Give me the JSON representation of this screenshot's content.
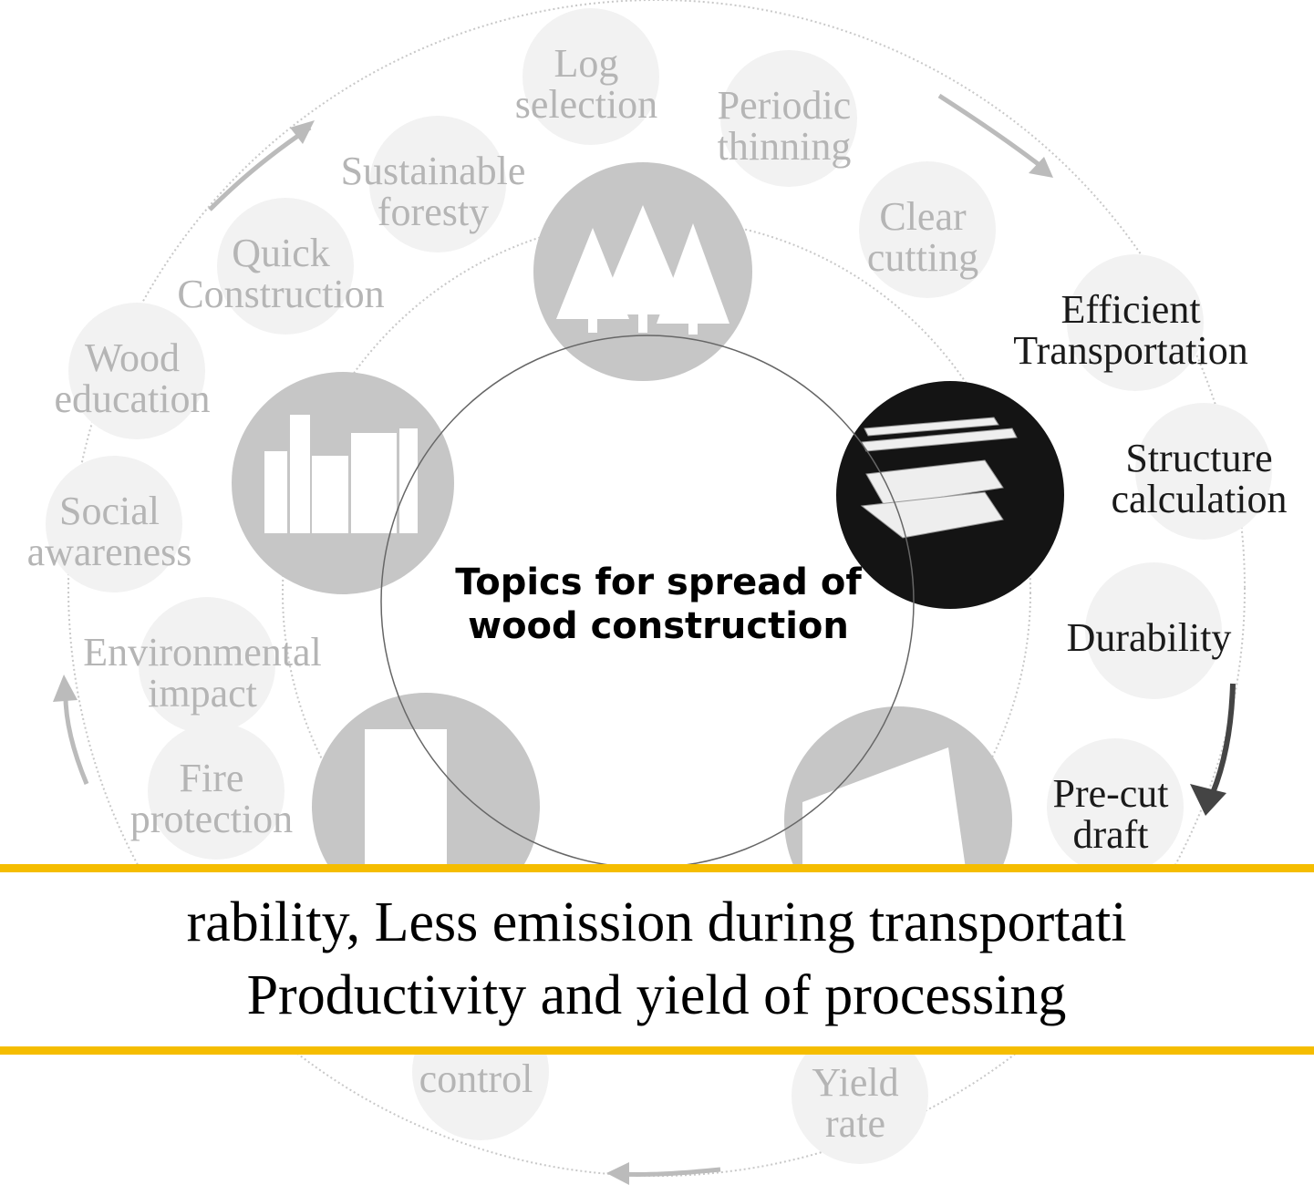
{
  "center": {
    "lines": [
      "Topics for spread of",
      "wood construction"
    ]
  },
  "topics": [
    {
      "lines": [
        "Log",
        "selection"
      ]
    },
    {
      "lines": [
        "Periodic",
        "thinning"
      ]
    },
    {
      "lines": [
        "Sustainable",
        "foresty"
      ]
    },
    {
      "lines": [
        "Clear",
        "cutting"
      ]
    },
    {
      "lines": [
        "Quick",
        "Construction"
      ]
    },
    {
      "lines": [
        "Efficient",
        "Transportation"
      ]
    },
    {
      "lines": [
        "Wood",
        "education"
      ]
    },
    {
      "lines": [
        "Structure",
        "calculation"
      ]
    },
    {
      "lines": [
        "Social",
        "awareness"
      ]
    },
    {
      "lines": [
        "Durability"
      ]
    },
    {
      "lines": [
        "Environmental",
        "impact"
      ]
    },
    {
      "lines": [
        "Fire",
        "protection"
      ]
    },
    {
      "lines": [
        "Pre-cut",
        "draft"
      ]
    },
    {
      "lines": [
        "control"
      ]
    },
    {
      "lines": [
        "Yield",
        "rate"
      ]
    }
  ],
  "banner": {
    "lines": [
      "rability, Less emission during transportati",
      "Productivity and yield of processing"
    ]
  }
}
